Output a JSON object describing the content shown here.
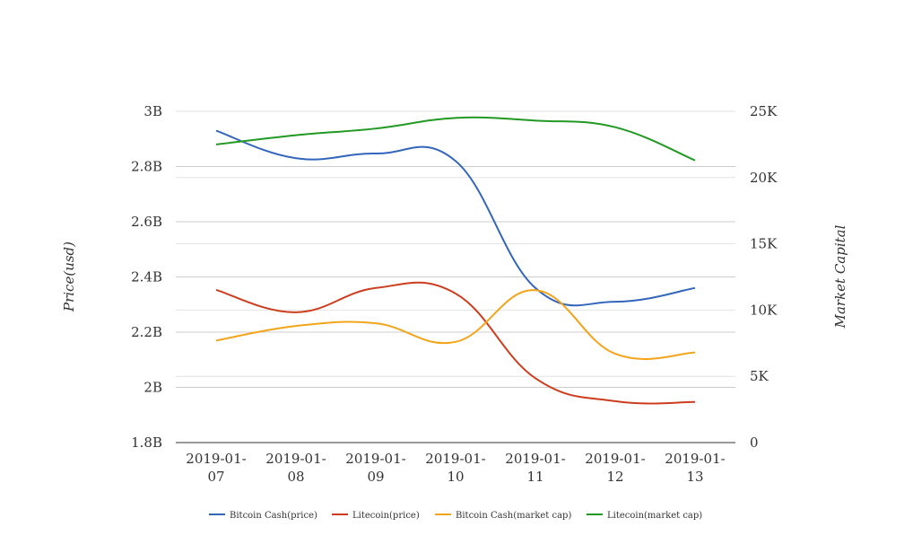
{
  "chart_data": {
    "type": "line",
    "categories": [
      [
        "2019-01-",
        "07"
      ],
      [
        "2019-01-",
        "08"
      ],
      [
        "2019-01-",
        "09"
      ],
      [
        "2019-01-",
        "10"
      ],
      [
        "2019-01-",
        "11"
      ],
      [
        "2019-01-",
        "12"
      ],
      [
        "2019-01-",
        "13"
      ]
    ],
    "y_left": {
      "label": "Price(usd)",
      "min": 1800000000,
      "max": 3000000000,
      "ticks": [
        {
          "v": 1800000000,
          "label": "1.8B"
        },
        {
          "v": 2000000000,
          "label": "2B"
        },
        {
          "v": 2200000000,
          "label": "2.2B"
        },
        {
          "v": 2400000000,
          "label": "2.4B"
        },
        {
          "v": 2600000000,
          "label": "2.6B"
        },
        {
          "v": 2800000000,
          "label": "2.8B"
        },
        {
          "v": 3000000000,
          "label": "3B"
        }
      ]
    },
    "y_right": {
      "label": "Market Capital",
      "min": 0,
      "max": 25000,
      "ticks": [
        {
          "v": 0,
          "label": "0"
        },
        {
          "v": 5000,
          "label": "5K"
        },
        {
          "v": 10000,
          "label": "10K"
        },
        {
          "v": 15000,
          "label": "15K"
        },
        {
          "v": 20000,
          "label": "20K"
        },
        {
          "v": 25000,
          "label": "25K"
        }
      ]
    },
    "series": [
      {
        "name": "Bitcoin Cash(price)",
        "axis": "left",
        "color": "#3366bb",
        "values": [
          2930000000,
          2830000000,
          2847000000,
          2820000000,
          2360000000,
          2310000000,
          2360000000
        ]
      },
      {
        "name": "Litecoin(price)",
        "axis": "left",
        "color": "#cc3d1f",
        "values": [
          2353000000,
          2272000000,
          2360000000,
          2340000000,
          2033000000,
          1950000000,
          1947000000
        ]
      },
      {
        "name": "Bitcoin Cash(market cap)",
        "axis": "right",
        "color": "#f2a51a",
        "values": [
          7700,
          8800,
          9000,
          7600,
          11500,
          6700,
          6800
        ]
      },
      {
        "name": "Litecoin(market cap)",
        "axis": "right",
        "color": "#229922",
        "values": [
          22500,
          23200,
          23700,
          24500,
          24300,
          23800,
          21300
        ]
      }
    ],
    "grid": true,
    "legend": "bottom"
  }
}
